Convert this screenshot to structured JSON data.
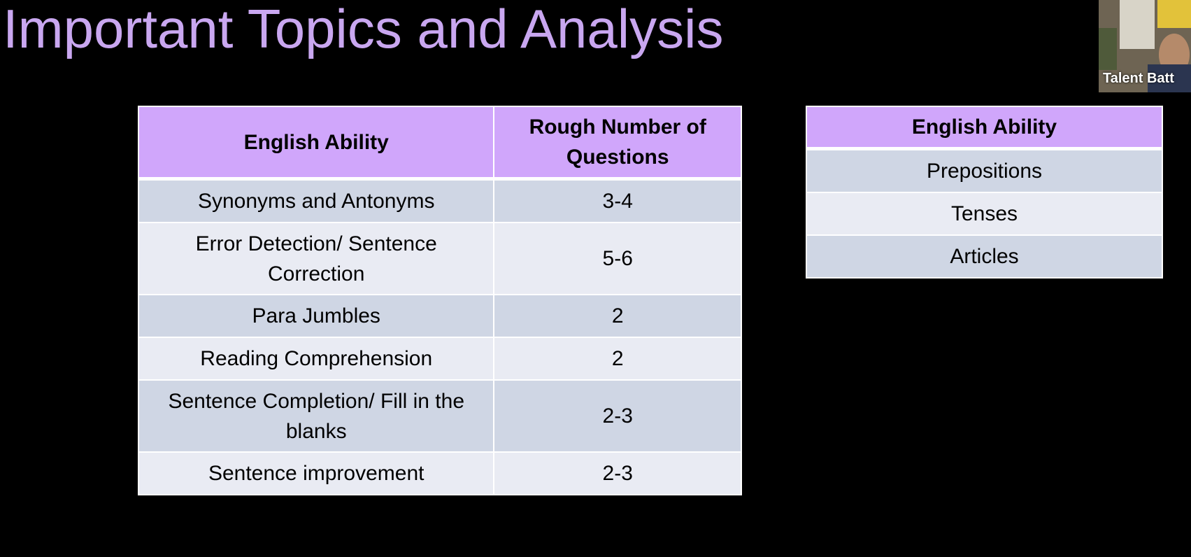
{
  "slide": {
    "title": "Important Topics and Analysis"
  },
  "topics_table": {
    "headers": [
      "English Ability",
      "Rough Number of Questions"
    ],
    "rows": [
      {
        "topic": "Synonyms and Antonyms",
        "count": "3-4"
      },
      {
        "topic": "Error Detection/ Sentence Correction",
        "count": "5-6"
      },
      {
        "topic": "Para Jumbles",
        "count": "2"
      },
      {
        "topic": "Reading Comprehension",
        "count": "2"
      },
      {
        "topic": "Sentence Completion/ Fill in the blanks",
        "count": "2-3"
      },
      {
        "topic": "Sentence improvement",
        "count": "2-3"
      }
    ]
  },
  "ability_table": {
    "header": "English Ability",
    "rows": [
      "Prepositions",
      "Tenses",
      "Articles"
    ]
  },
  "webcam": {
    "name": "Talent Batt"
  },
  "colors": {
    "title": "#c9a7f0",
    "header_bg": "#d0a6fb",
    "row_dark": "#cfd6e4",
    "row_light": "#e9ebf3",
    "background": "#000000"
  }
}
